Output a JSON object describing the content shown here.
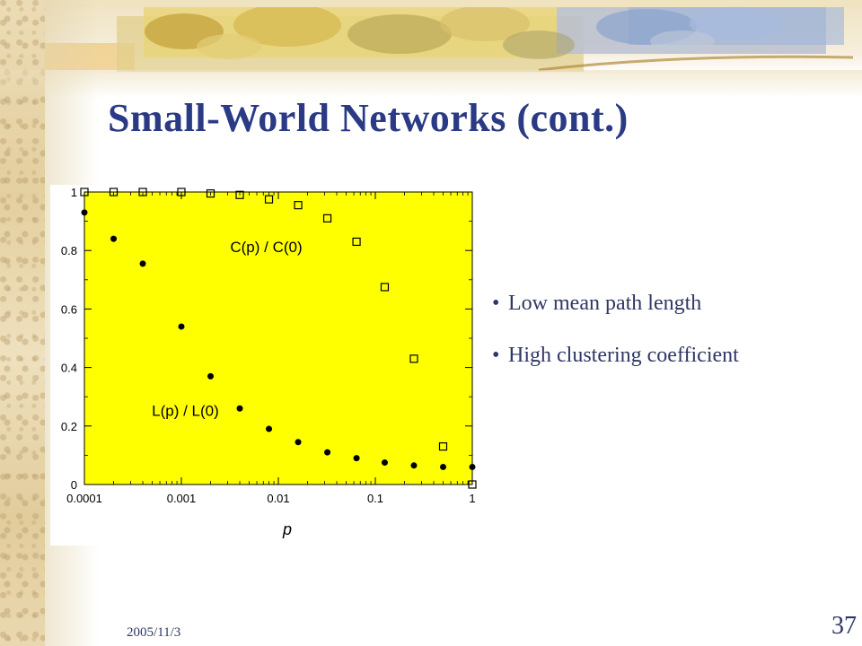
{
  "slide": {
    "title": "Small-World Networks (cont.)",
    "bullets": [
      "Low mean path length",
      "High clustering coefficient"
    ],
    "bullet_marker": "•",
    "footer_date": "2005/11/3",
    "page_number": "37",
    "colors": {
      "title": "#2a3a84",
      "text": "#2e3766",
      "plot_bg": "#ffff00"
    }
  },
  "chart_data": {
    "type": "scatter",
    "title": "",
    "xlabel": "p",
    "ylabel": "",
    "xscale": "log",
    "xlim": [
      0.0001,
      1
    ],
    "ylim": [
      0,
      1
    ],
    "xticks": [
      "0.0001",
      "0.001",
      "0.01",
      "0.1",
      "1"
    ],
    "yticks": [
      "0",
      "0.2",
      "0.4",
      "0.6",
      "0.8",
      "1"
    ],
    "grid": false,
    "series": [
      {
        "name": "C(p) / C(0)",
        "marker": "open-square",
        "x": [
          0.0001,
          0.0002,
          0.0004,
          0.001,
          0.002,
          0.004,
          0.008,
          0.016,
          0.032,
          0.064,
          0.125,
          0.25,
          0.5,
          1
        ],
        "y": [
          1.0,
          1.0,
          1.0,
          1.0,
          0.995,
          0.99,
          0.975,
          0.955,
          0.91,
          0.83,
          0.675,
          0.43,
          0.13,
          0.0
        ]
      },
      {
        "name": "L(p) / L(0)",
        "marker": "filled-circle",
        "x": [
          0.0001,
          0.0002,
          0.0004,
          0.001,
          0.002,
          0.004,
          0.008,
          0.016,
          0.032,
          0.064,
          0.125,
          0.25,
          0.5,
          1
        ],
        "y": [
          0.93,
          0.84,
          0.755,
          0.54,
          0.37,
          0.26,
          0.19,
          0.145,
          0.11,
          0.09,
          0.075,
          0.065,
          0.06,
          0.06
        ]
      }
    ]
  }
}
